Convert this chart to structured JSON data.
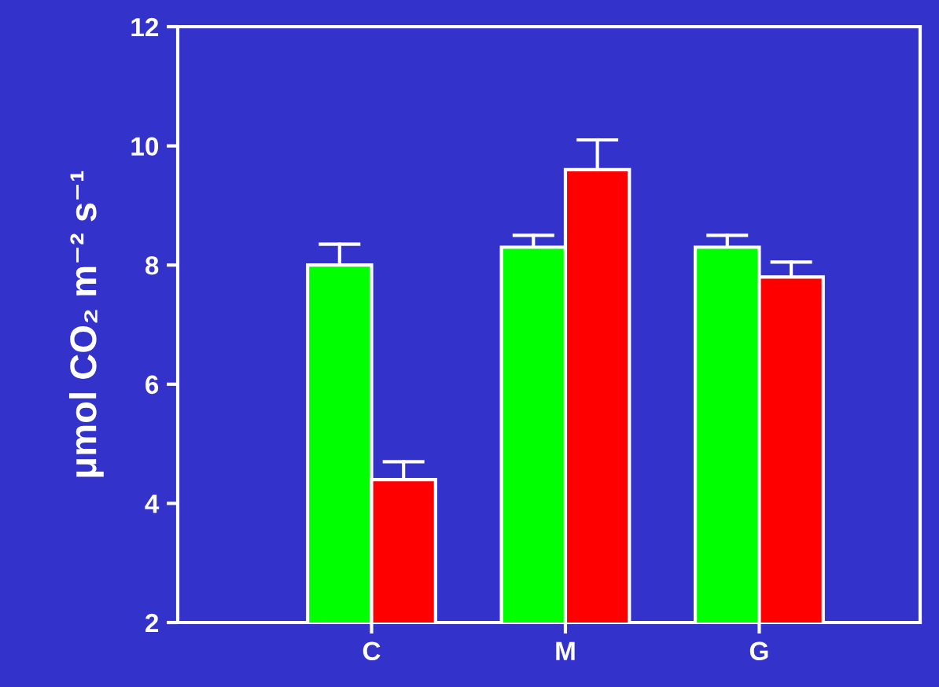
{
  "chart_data": {
    "type": "bar",
    "ylabel": "μmol CO₂ m⁻² s⁻¹",
    "categories": [
      "C",
      "M",
      "G"
    ],
    "series": [
      {
        "color": "#00ff00",
        "values": [
          8.0,
          8.3,
          8.3
        ],
        "errors": [
          [
            8.0,
            8.35
          ],
          [
            8.3,
            8.5
          ],
          [
            8.3,
            8.5
          ]
        ]
      },
      {
        "color": "#ff0000",
        "values": [
          4.4,
          9.6,
          7.8
        ],
        "errors": [
          [
            4.4,
            4.7
          ],
          [
            9.6,
            10.1
          ],
          [
            7.8,
            8.05
          ]
        ]
      }
    ],
    "ylim": [
      2,
      12
    ],
    "yticks": [
      2,
      4,
      6,
      8,
      10,
      12
    ],
    "grid": false
  }
}
